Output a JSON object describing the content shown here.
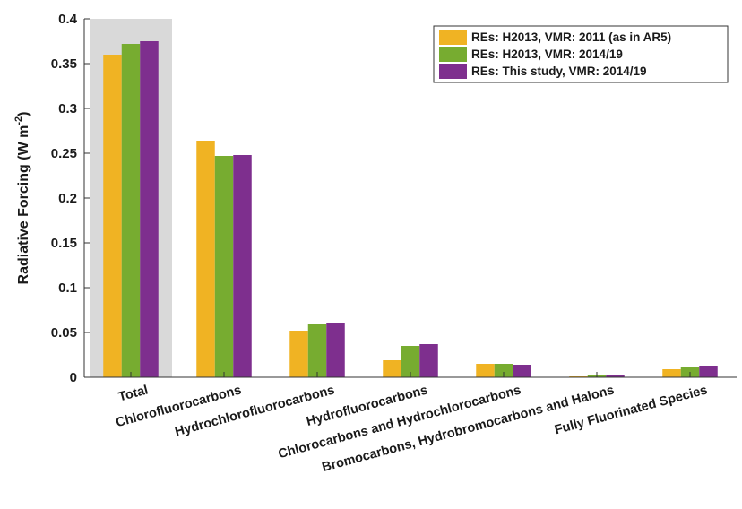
{
  "chart_data": {
    "type": "bar",
    "title": "",
    "xlabel": "",
    "ylabel": "Radiative Forcing (W m",
    "ylabel_sup": "-2",
    "ylabel_tail": ")",
    "ylim": [
      0,
      0.4
    ],
    "yticks": [
      0,
      0.05,
      0.1,
      0.15,
      0.2,
      0.25,
      0.3,
      0.35,
      0.4
    ],
    "ytick_labels": [
      "0",
      "0.05",
      "0.1",
      "0.15",
      "0.2",
      "0.25",
      "0.3",
      "0.35",
      "0.4"
    ],
    "grid": false,
    "legend_position": "top-right",
    "highlight_category": "Total",
    "highlight_color": "#d9d9d9",
    "categories": [
      "Total",
      "Chlorofluorocarbons",
      "Hydrochlorofluorocarbons",
      "Hydrofluorocarbons",
      "Chlorocarbons and Hydrochlorocarbons",
      "Bromocarbons, Hydrobromocarbons and Halons",
      "Fully Fluorinated Species"
    ],
    "series": [
      {
        "name": "REs: H2013, VMR: 2011 (as in AR5)",
        "color": "#f0b323",
        "values": [
          0.36,
          0.264,
          0.052,
          0.019,
          0.015,
          0.001,
          0.009
        ]
      },
      {
        "name": "REs: H2013, VMR: 2014/19",
        "color": "#77ac30",
        "values": [
          0.372,
          0.247,
          0.059,
          0.035,
          0.015,
          0.002,
          0.012
        ]
      },
      {
        "name": "REs: This study, VMR: 2014/19",
        "color": "#7e2f8e",
        "values": [
          0.375,
          0.248,
          0.061,
          0.037,
          0.014,
          0.002,
          0.013
        ]
      }
    ]
  }
}
